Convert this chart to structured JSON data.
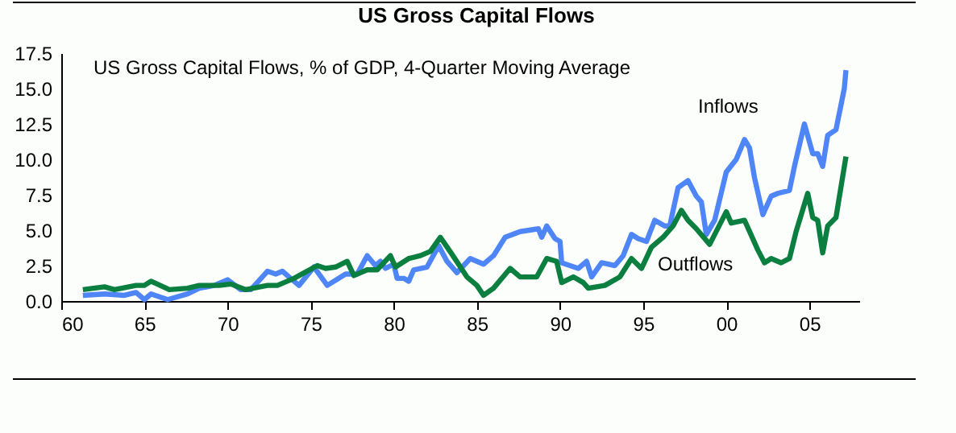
{
  "chart_data": {
    "type": "line",
    "title": "US Gross Capital Flows",
    "subtitle": "US Gross Capital Flows, % of GDP, 4-Quarter Moving Average",
    "xlim": [
      1960,
      2008
    ],
    "xticks": [
      {
        "value": 1960,
        "label": "60"
      },
      {
        "value": 1965,
        "label": "65"
      },
      {
        "value": 1970,
        "label": "70"
      },
      {
        "value": 1975,
        "label": "75"
      },
      {
        "value": 1980,
        "label": "80"
      },
      {
        "value": 1985,
        "label": "85"
      },
      {
        "value": 1990,
        "label": "90"
      },
      {
        "value": 1995,
        "label": "95"
      },
      {
        "value": 2000,
        "label": "00"
      },
      {
        "value": 2005,
        "label": "05"
      }
    ],
    "ylim": [
      0,
      17.5
    ],
    "yticks": [
      {
        "value": 0,
        "label": "0.0"
      },
      2.5,
      {
        "value": 5,
        "label": "5.0"
      },
      7.5,
      {
        "value": 10,
        "label": "10.0"
      },
      12.5,
      {
        "value": 15,
        "label": "15.0"
      },
      17.5
    ],
    "grid": false,
    "legend": false,
    "line_style": "solid",
    "marker": "none",
    "series": [
      {
        "name": "Inflows",
        "color": "#4f86f7",
        "x": [
          1961.3,
          1962.6,
          1963.8,
          1964.5,
          1965.0,
          1965.4,
          1966.4,
          1967.6,
          1968.3,
          1969.2,
          1970.0,
          1970.8,
          1971.4,
          1972.4,
          1972.9,
          1973.3,
          1973.8,
          1974.3,
          1975.2,
          1976.0,
          1977.1,
          1977.8,
          1978.4,
          1978.9,
          1979.2,
          1979.5,
          1980.0,
          1980.2,
          1980.6,
          1980.9,
          1981.2,
          1982.0,
          1982.7,
          1983.2,
          1983.8,
          1984.6,
          1985.4,
          1986.0,
          1986.7,
          1987.6,
          1988.7,
          1988.9,
          1989.2,
          1989.7,
          1990.0,
          1990.1,
          1991.1,
          1991.6,
          1991.9,
          1992.5,
          1993.3,
          1993.8,
          1994.3,
          1994.7,
          1995.2,
          1995.7,
          1996.3,
          1996.6,
          1997.1,
          1997.7,
          1998.2,
          1998.5,
          1998.8,
          1999.3,
          2000.0,
          2000.6,
          2001.1,
          2001.4,
          2001.7,
          2002.2,
          2002.7,
          2003.1,
          2003.8,
          2004.1,
          2004.7,
          2005.2,
          2005.5,
          2005.8,
          2006.1,
          2006.6,
          2007.1,
          2007.2
        ],
        "values": [
          0.4,
          0.5,
          0.4,
          0.6,
          0.1,
          0.5,
          0.1,
          0.5,
          0.9,
          1.1,
          1.5,
          0.8,
          0.8,
          2.1,
          1.9,
          2.1,
          1.6,
          1.1,
          2.4,
          1.1,
          1.9,
          1.9,
          3.2,
          2.5,
          2.8,
          2.3,
          2.6,
          1.6,
          1.6,
          1.4,
          2.2,
          2.4,
          3.9,
          2.8,
          2.0,
          3.0,
          2.6,
          3.2,
          4.5,
          4.9,
          5.1,
          4.5,
          5.3,
          4.4,
          4.2,
          2.7,
          2.3,
          2.8,
          1.7,
          2.7,
          2.5,
          3.2,
          4.7,
          4.4,
          4.2,
          5.7,
          5.3,
          5.3,
          8.0,
          8.5,
          7.4,
          7.0,
          4.7,
          5.7,
          9.1,
          10.0,
          11.4,
          10.8,
          8.7,
          6.1,
          7.4,
          7.6,
          7.8,
          9.5,
          12.5,
          10.4,
          10.4,
          9.5,
          11.7,
          12.1,
          15.0,
          16.3
        ]
      },
      {
        "name": "Outflows",
        "color": "#0b7f3f",
        "x": [
          1961.3,
          1962.6,
          1963.2,
          1964.5,
          1965.0,
          1965.4,
          1966.5,
          1967.6,
          1968.3,
          1969.5,
          1970.2,
          1971.1,
          1972.4,
          1973.0,
          1974.0,
          1975.4,
          1975.9,
          1976.5,
          1977.2,
          1977.6,
          1978.4,
          1979.0,
          1979.8,
          1980.1,
          1980.9,
          1981.6,
          1982.2,
          1982.8,
          1983.5,
          1984.4,
          1985.0,
          1985.4,
          1986.0,
          1987.0,
          1987.6,
          1988.6,
          1989.2,
          1989.8,
          1990.1,
          1990.8,
          1991.4,
          1991.7,
          1992.7,
          1993.6,
          1994.3,
          1994.9,
          1995.5,
          1996.2,
          1996.8,
          1997.3,
          1997.7,
          1998.2,
          1999.0,
          2000.0,
          2000.3,
          2001.1,
          2001.9,
          2002.3,
          2002.7,
          2003.3,
          2003.8,
          2004.2,
          2004.9,
          2005.2,
          2005.5,
          2005.8,
          2006.1,
          2006.6,
          2007.2
        ],
        "values": [
          0.8,
          1.0,
          0.8,
          1.1,
          1.1,
          1.4,
          0.8,
          0.9,
          1.1,
          1.1,
          1.2,
          0.8,
          1.1,
          1.1,
          1.6,
          2.5,
          2.3,
          2.4,
          2.8,
          1.8,
          2.2,
          2.2,
          3.2,
          2.4,
          3.0,
          3.2,
          3.5,
          4.5,
          3.3,
          1.7,
          1.1,
          0.4,
          0.9,
          2.3,
          1.7,
          1.7,
          3.0,
          2.8,
          1.3,
          1.7,
          1.3,
          0.9,
          1.1,
          1.7,
          3.0,
          2.3,
          3.8,
          4.5,
          5.3,
          6.4,
          5.7,
          5.1,
          4.0,
          6.3,
          5.5,
          5.7,
          3.6,
          2.7,
          3.0,
          2.7,
          3.0,
          4.9,
          7.6,
          5.9,
          5.7,
          3.4,
          5.3,
          5.9,
          10.2
        ]
      }
    ]
  }
}
